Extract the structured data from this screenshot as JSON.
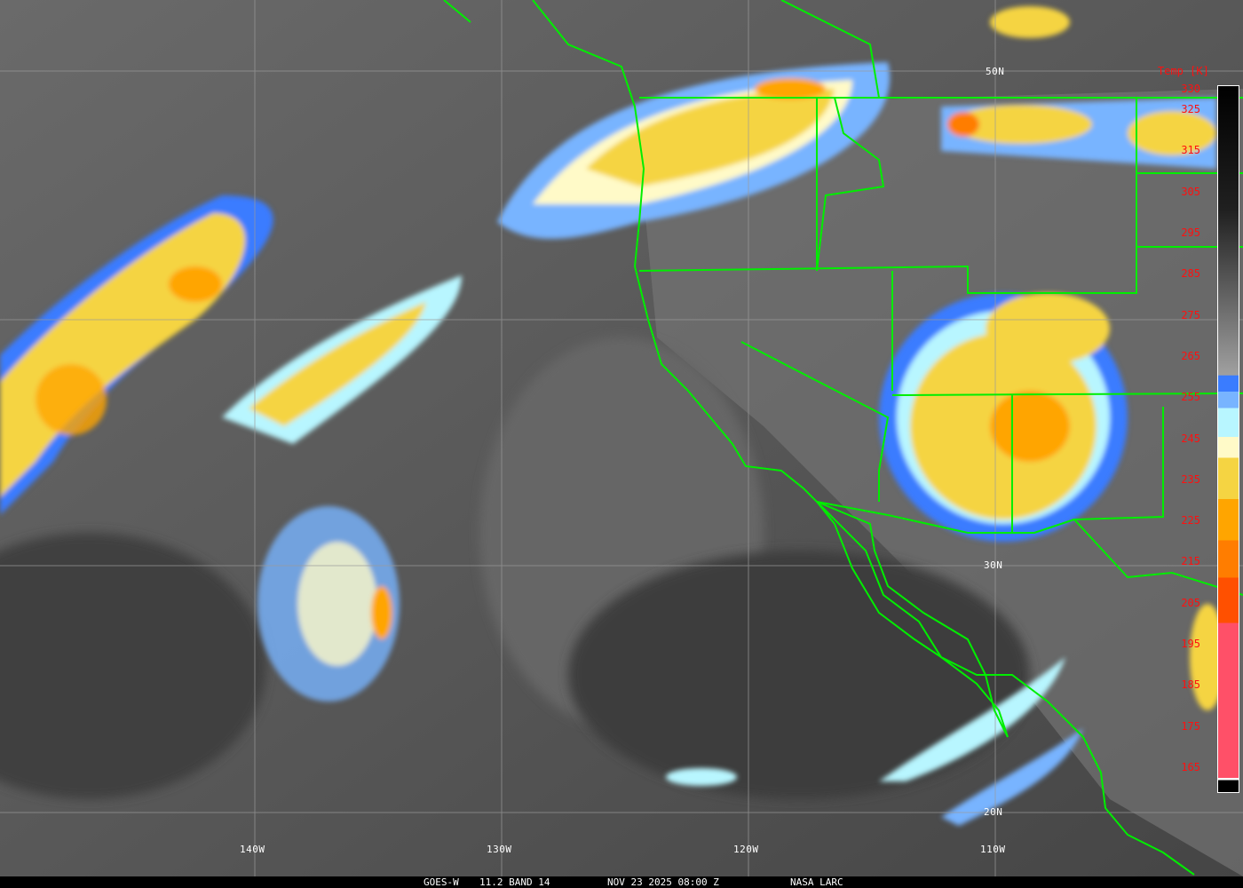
{
  "caption": {
    "satellite": "GOES-W",
    "channel": "11.2 BAND 14",
    "datetime": "NOV 23 2025 08:00 Z",
    "credit": "NASA LARC"
  },
  "grid": {
    "longitudes": [
      "140W",
      "130W",
      "120W",
      "110W"
    ],
    "latitudes": [
      "50N",
      "30N",
      "20N"
    ]
  },
  "legend": {
    "title": "Temp [K]",
    "ticks": [
      "330",
      "325",
      "315",
      "305",
      "295",
      "285",
      "275",
      "265",
      "255",
      "245",
      "235",
      "225",
      "215",
      "205",
      "195",
      "185",
      "175",
      "165"
    ],
    "colors": {
      "cold_black": "#000000",
      "grey_warm": "#a0a0a0",
      "blue": "#3a7cff",
      "light_blue": "#78b4ff",
      "cyan": "#b8f6ff",
      "pale_yellow": "#fffac8",
      "yellow": "#f5d442",
      "orange": "#ffa500",
      "dark_orange": "#ff7d00",
      "red_orange": "#ff5000",
      "pink": "#ff5068"
    }
  },
  "overlay_color": "#00ee00"
}
